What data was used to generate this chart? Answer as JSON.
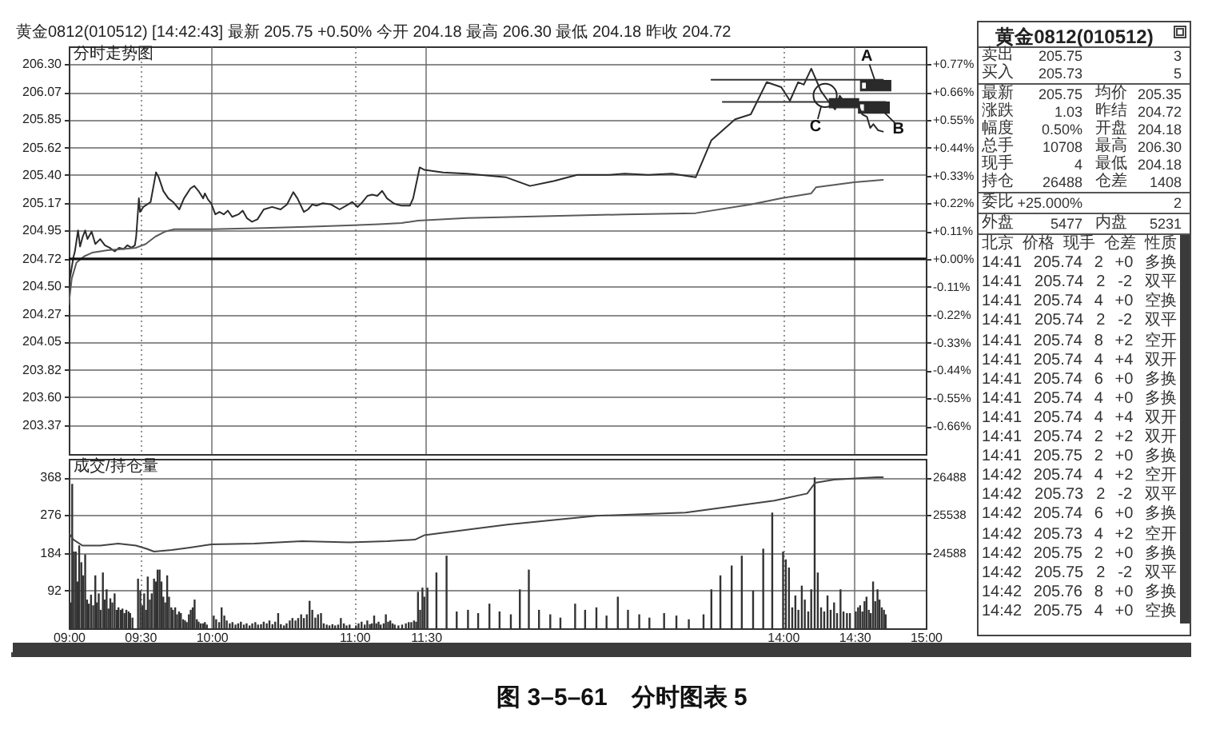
{
  "chart_data": [
    {
      "type": "line",
      "title": "黄金0812(010512) [14:42:43] 最新 205.75 +0.50% 今开 204.18 最高 206.30 最低 204.18 昨收 204.72",
      "subtitle": "分时走势图",
      "xlim": [
        9,
        15
      ],
      "xticks": [
        9,
        9.5,
        10,
        11,
        11.5,
        14,
        14.5,
        15
      ],
      "ylim": [
        203.14,
        206.44
      ],
      "yticks": [
        {
          "value": 206.3,
          "label": "206.30"
        },
        206.07,
        205.85,
        205.62,
        {
          "value": 205.4,
          "label": "205.40"
        },
        205.17,
        204.95,
        204.72,
        {
          "value": 204.5,
          "label": "204.50"
        },
        204.27,
        204.05,
        203.82,
        {
          "value": 203.6,
          "label": "203.60"
        },
        203.37
      ],
      "y2lim": [
        -0.77,
        0.84
      ],
      "y2ticks": [
        {
          "value": 0.77,
          "label": "+0.77%"
        },
        {
          "value": 0.66,
          "label": "+0.66%"
        },
        {
          "value": 0.55,
          "label": "+0.55%"
        },
        {
          "value": 0.44,
          "label": "+0.44%"
        },
        {
          "value": 0.33,
          "label": "+0.33%"
        },
        {
          "value": 0.22,
          "label": "+0.22%"
        },
        {
          "value": 0.11,
          "label": "+0.11%"
        },
        {
          "value": 0,
          "label": "+0.00%"
        },
        {
          "value": -0.11,
          "label": "-0.11%"
        },
        {
          "value": -0.22,
          "label": "-0.22%"
        },
        {
          "value": -0.33,
          "label": "-0.33%"
        },
        {
          "value": -0.44,
          "label": "-0.44%"
        },
        {
          "value": -0.55,
          "label": "-0.55%"
        },
        {
          "value": -0.66,
          "label": "-0.66%"
        }
      ],
      "tick_labels": "y",
      "grid": true,
      "series": [
        {
          "color": "#2b2b2b",
          "x": [
            9.0,
            9.008,
            9.032,
            9.043,
            9.065,
            9.079,
            9.098,
            9.115,
            9.131,
            9.16,
            9.186,
            9.22,
            9.253,
            9.286,
            9.322,
            9.352,
            9.384,
            9.411,
            9.439,
            9.463,
            9.472,
            9.491,
            9.499,
            9.522,
            9.573,
            9.611,
            9.63,
            9.662,
            9.697,
            9.731,
            9.774,
            9.807,
            9.852,
            9.879,
            9.908,
            9.941,
            9.953,
            9.975,
            9.997,
            10.026,
            10.055,
            10.085,
            10.114,
            10.144,
            10.188,
            10.218,
            10.247,
            10.283,
            10.321,
            10.365,
            10.424,
            10.483,
            10.528,
            10.572,
            10.601,
            10.646,
            10.675,
            10.705,
            10.734,
            10.778,
            10.837,
            10.896,
            10.956,
            10.985,
            11.023,
            11.057,
            11.091,
            11.125,
            11.16,
            11.194,
            11.228,
            11.274,
            11.297,
            11.331,
            11.388,
            11.411,
            11.457,
            11.491,
            11.621,
            11.787,
            12.063,
            12.229,
            12.395,
            12.56,
            12.781,
            12.892,
            13.057,
            13.223,
            13.389,
            13.499,
            13.665,
            13.775,
            13.886,
            13.988,
            14.049,
            14.106,
            14.146,
            14.198,
            14.232,
            14.265,
            14.315,
            14.365,
            14.398,
            14.448,
            14.481,
            14.521,
            14.555,
            14.588,
            14.611,
            14.633,
            14.667,
            14.7
          ],
          "values": [
            204.18,
            204.56,
            204.73,
            204.78,
            204.95,
            204.82,
            204.9,
            204.95,
            204.88,
            204.94,
            204.84,
            204.88,
            204.83,
            204.81,
            204.78,
            204.81,
            204.8,
            204.83,
            204.81,
            204.83,
            204.9,
            205.21,
            205.1,
            205.14,
            205.18,
            205.42,
            205.38,
            205.27,
            205.21,
            205.18,
            205.12,
            205.21,
            205.29,
            205.31,
            205.27,
            205.21,
            205.25,
            205.2,
            205.17,
            205.08,
            205.1,
            205.08,
            205.11,
            205.06,
            205.08,
            205.11,
            205.05,
            205.02,
            205.04,
            205.12,
            205.14,
            205.12,
            205.16,
            205.26,
            205.21,
            205.1,
            205.12,
            205.16,
            205.15,
            205.17,
            205.16,
            205.12,
            205.16,
            205.18,
            205.14,
            205.18,
            205.23,
            205.24,
            205.23,
            205.27,
            205.21,
            205.17,
            205.16,
            205.15,
            205.15,
            205.21,
            205.46,
            205.44,
            205.42,
            205.41,
            205.38,
            205.31,
            205.35,
            205.4,
            205.4,
            205.41,
            205.4,
            205.41,
            205.38,
            205.68,
            205.85,
            205.89,
            206.15,
            206.11,
            206.0,
            206.15,
            206.13,
            206.26,
            206.17,
            206.08,
            206.0,
            205.93,
            206.04,
            205.96,
            206.0,
            205.98,
            205.89,
            205.87,
            205.78,
            205.81,
            205.76,
            205.75
          ]
        },
        {
          "color": "#5a5a5a",
          "x": [
            9.0,
            9.021,
            9.054,
            9.107,
            9.164,
            9.273,
            9.384,
            9.472,
            9.539,
            9.606,
            9.673,
            9.74,
            9.997,
            10.365,
            10.66,
            10.956,
            11.171,
            11.331,
            11.445,
            11.787,
            12.892,
            13.389,
            13.775,
            13.988,
            14.198,
            14.232,
            14.498,
            14.7
          ],
          "values": [
            204.35,
            204.56,
            204.69,
            204.74,
            204.77,
            204.79,
            204.8,
            204.81,
            204.84,
            204.9,
            204.94,
            204.96,
            204.96,
            204.97,
            204.98,
            204.99,
            205.0,
            205.01,
            205.03,
            205.05,
            205.08,
            205.09,
            205.16,
            205.21,
            205.25,
            205.3,
            205.34,
            205.36
          ]
        },
        {
          "color": "#333333",
          "x": [
            13.499,
            14.7
          ],
          "values": [
            206.17,
            206.17
          ]
        },
        {
          "color": "#333333",
          "x": [
            13.578,
            14.718
          ],
          "values": [
            205.99,
            205.99
          ]
        }
      ],
      "ref_lines": [
        {
          "axis": "y",
          "value": 204.72,
          "color": "#111111"
        }
      ],
      "annotations": [
        {
          "text": "A",
          "x": 14.64,
          "y": 206.17
        },
        {
          "text": "B",
          "x": 14.7,
          "y": 205.99
        },
        {
          "text": "C",
          "x": 14.265,
          "y": 206.08
        },
        "图 3–5–61　分时图表 5"
      ]
    },
    {
      "type": "bar",
      "title": "成交/持仓量",
      "xlim": [
        9,
        15
      ],
      "xticks": [
        {
          "value": 9,
          "label": "09:00"
        },
        {
          "value": 9.5,
          "label": "09:30"
        },
        {
          "value": 10,
          "label": "10:00"
        },
        {
          "value": 11,
          "label": "11:00"
        },
        {
          "value": 11.5,
          "label": "11:30"
        },
        {
          "value": 14,
          "label": "14:00"
        },
        {
          "value": 14.5,
          "label": "14:30"
        },
        {
          "value": 15,
          "label": "15:00"
        }
      ],
      "ylim": [
        0,
        413
      ],
      "yticks": [
        92,
        184,
        276,
        368
      ],
      "y2lim": [
        22688,
        26953
      ],
      "y2ticks": [
        24588,
        25538,
        26488
      ],
      "grid": true,
      "series": [
        {
          "type": "bar",
          "color": "#333333",
          "x": [
            9.014,
            9.024,
            9.036,
            9.049,
            9.062,
            9.073,
            9.088,
            9.101,
            9.115,
            9.128,
            9.141,
            9.156,
            9.171,
            9.186,
            9.197,
            9.21,
            9.223,
            9.239,
            9.251,
            9.265,
            9.278,
            9.291,
            9.305,
            9.321,
            9.335,
            9.348,
            9.363,
            9.376,
            9.39,
            9.403,
            9.419,
            9.43,
            9.446,
            9.485,
            9.501,
            9.515,
            9.528,
            9.541,
            9.553,
            9.568,
            9.581,
            9.597,
            9.609,
            9.622,
            9.636,
            9.649,
            9.662,
            9.675,
            9.689,
            9.702,
            9.718,
            9.729,
            9.745,
            9.758,
            9.772,
            9.785,
            9.801,
            9.814,
            9.826,
            9.841,
            9.854,
            9.868,
            9.881,
            9.897,
            9.909,
            9.924,
            9.94,
            9.953,
            9.967,
            10.015,
            10.032,
            10.053,
            10.07,
            10.089,
            10.106,
            10.127,
            10.146,
            10.167,
            10.186,
            10.205,
            10.226,
            10.245,
            10.266,
            10.285,
            10.306,
            10.325,
            10.346,
            10.365,
            10.386,
            10.405,
            10.426,
            10.445,
            10.466,
            10.485,
            10.507,
            10.525,
            10.547,
            10.566,
            10.587,
            10.606,
            10.627,
            10.646,
            10.667,
            10.686,
            10.705,
            10.726,
            10.745,
            10.766,
            10.785,
            10.806,
            10.825,
            10.846,
            10.865,
            10.886,
            10.905,
            10.926,
            10.945,
            10.966,
            11.011,
            11.029,
            11.05,
            11.072,
            11.09,
            11.108,
            11.122,
            11.138,
            11.153,
            11.169,
            11.184,
            11.205,
            11.22,
            11.236,
            11.251,
            11.267,
            11.282,
            11.308,
            11.334,
            11.36,
            11.38,
            11.398,
            11.417,
            11.432,
            11.445,
            11.46,
            11.476,
            11.489,
            11.511,
            11.574,
            11.645,
            11.716,
            11.795,
            11.866,
            11.945,
            12.016,
            12.095,
            12.158,
            12.221,
            12.292,
            12.371,
            12.442,
            12.545,
            12.615,
            12.694,
            12.765,
            12.844,
            12.915,
            12.994,
            13.065,
            13.168,
            13.254,
            13.341,
            13.444,
            13.499,
            13.562,
            13.641,
            13.712,
            13.791,
            13.862,
            13.925,
            14.001,
            14.02,
            14.042,
            14.065,
            14.087,
            14.108,
            14.132,
            14.153,
            14.177,
            14.198,
            14.222,
            14.244,
            14.267,
            14.289,
            14.312,
            14.334,
            14.358,
            14.379,
            14.403,
            14.424,
            14.448,
            14.469,
            14.51,
            14.526,
            14.54,
            14.556,
            14.571,
            14.585,
            14.601,
            14.615,
            14.631,
            14.646,
            14.662,
            14.676,
            14.692,
            14.707,
            14.719
          ],
          "values": [
            63,
            352,
            187,
            187,
            114,
            202,
            161,
            129,
            180,
            70,
            60,
            82,
            56,
            129,
            63,
            85,
            45,
            136,
            70,
            95,
            48,
            73,
            63,
            85,
            45,
            51,
            45,
            48,
            37,
            45,
            41,
            37,
            26,
            121,
            92,
            56,
            85,
            45,
            126,
            70,
            85,
            121,
            114,
            143,
            143,
            114,
            77,
            63,
            129,
            77,
            51,
            45,
            51,
            34,
            41,
            37,
            22,
            19,
            15,
            34,
            45,
            51,
            70,
            22,
            16,
            12,
            12,
            15,
            9,
            31,
            22,
            15,
            51,
            31,
            19,
            12,
            15,
            9,
            12,
            16,
            9,
            12,
            7,
            12,
            15,
            9,
            10,
            16,
            12,
            19,
            10,
            16,
            37,
            10,
            7,
            12,
            19,
            25,
            19,
            25,
            34,
            25,
            34,
            67,
            45,
            26,
            34,
            37,
            12,
            9,
            7,
            10,
            7,
            9,
            25,
            12,
            7,
            9,
            7,
            12,
            16,
            9,
            19,
            10,
            12,
            31,
            12,
            16,
            9,
            12,
            34,
            16,
            19,
            12,
            9,
            7,
            9,
            12,
            15,
            15,
            19,
            16,
            89,
            45,
            99,
            77,
            99,
            136,
            177,
            41,
            45,
            37,
            60,
            41,
            34,
            95,
            143,
            45,
            34,
            26,
            60,
            45,
            51,
            31,
            77,
            45,
            34,
            26,
            37,
            31,
            22,
            34,
            95,
            129,
            153,
            177,
            92,
            194,
            282,
            187,
            168,
            148,
            51,
            80,
            45,
            104,
            70,
            41,
            95,
            368,
            136,
            51,
            41,
            80,
            45,
            63,
            37,
            95,
            41,
            37,
            37,
            41,
            51,
            56,
            41,
            66,
            77,
            45,
            37,
            114,
            66,
            95,
            70,
            51,
            45,
            34
          ]
        },
        {
          "type": "line",
          "axis": "y2",
          "color": "#444444",
          "x": [
            9.003,
            9.033,
            9.096,
            9.221,
            9.346,
            9.471,
            9.545,
            9.597,
            9.723,
            9.849,
            9.999,
            10.3,
            10.633,
            10.966,
            11.231,
            11.424,
            11.489,
            12.071,
            12.694,
            13.318,
            13.941,
            14.17,
            14.225,
            14.358,
            14.505,
            14.657,
            14.7
          ],
          "values": [
            25070,
            24920,
            24770,
            24770,
            24820,
            24770,
            24690,
            24620,
            24660,
            24720,
            24800,
            24820,
            24880,
            24850,
            24880,
            24920,
            25030,
            25300,
            25520,
            25600,
            25900,
            26080,
            26350,
            26430,
            26460,
            26488,
            26488
          ]
        }
      ]
    },
    {
      "type": "other",
      "title": "黄金0812(010512)",
      "annotations": [
        "卖出 205.75 3",
        "买入 205.73 5",
        "最新 205.75 均价 205.35",
        "涨跌 1.03 昨结 204.72",
        "幅度 0.50% 开盘 204.18",
        "总手 10708 最高 206.30",
        "现手 4 最低 204.18",
        "持仓 26488 仓差 1408",
        "委比 +25.000% 2",
        "外盘 5477 内盘 5231",
        "北京 价格 现手 仓差 性质",
        "14:41 205.74 2 +0 多换",
        "14:41 205.74 2 -2 双平",
        "14:41 205.74 4 +0 空换",
        "14:41 205.74 2 -2 双平",
        "14:41 205.74 8 +2 空开",
        "14:41 205.74 4 +4 双开",
        "14:41 205.74 6 +0 多换",
        "14:41 205.74 4 +0 多换",
        "14:41 205.74 4 +4 双开",
        "14:41 205.74 2 +2 双开",
        "14:41 205.75 2 +0 多换",
        "14:42 205.74 4 +2 空开",
        "14:42 205.73 2 -2 双平",
        "14:42 205.74 6 +0 多换",
        "14:42 205.73 4 +2 空开",
        "14:42 205.75 2 +0 多换",
        "14:42 205.75 2 -2 双平",
        "14:42 205.76 8 +0 多换",
        "14:42 205.75 4 +0 空换"
      ]
    }
  ]
}
